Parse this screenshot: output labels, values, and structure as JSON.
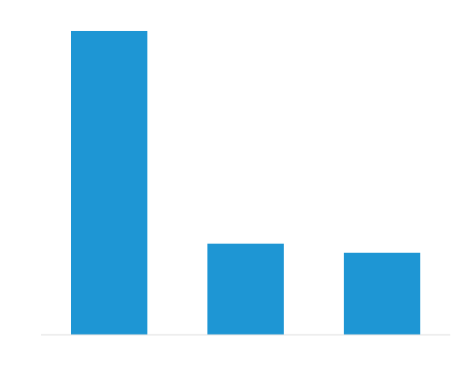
{
  "chart_data": {
    "type": "bar",
    "categories": [
      "",
      "",
      ""
    ],
    "values": [
      100,
      30,
      27
    ],
    "title": "",
    "xlabel": "",
    "ylabel": "",
    "ylim": [
      0,
      100
    ],
    "grid": false,
    "legend": "none",
    "bar_color": "#1e96d4",
    "axis_color": "#dcdcdc"
  }
}
